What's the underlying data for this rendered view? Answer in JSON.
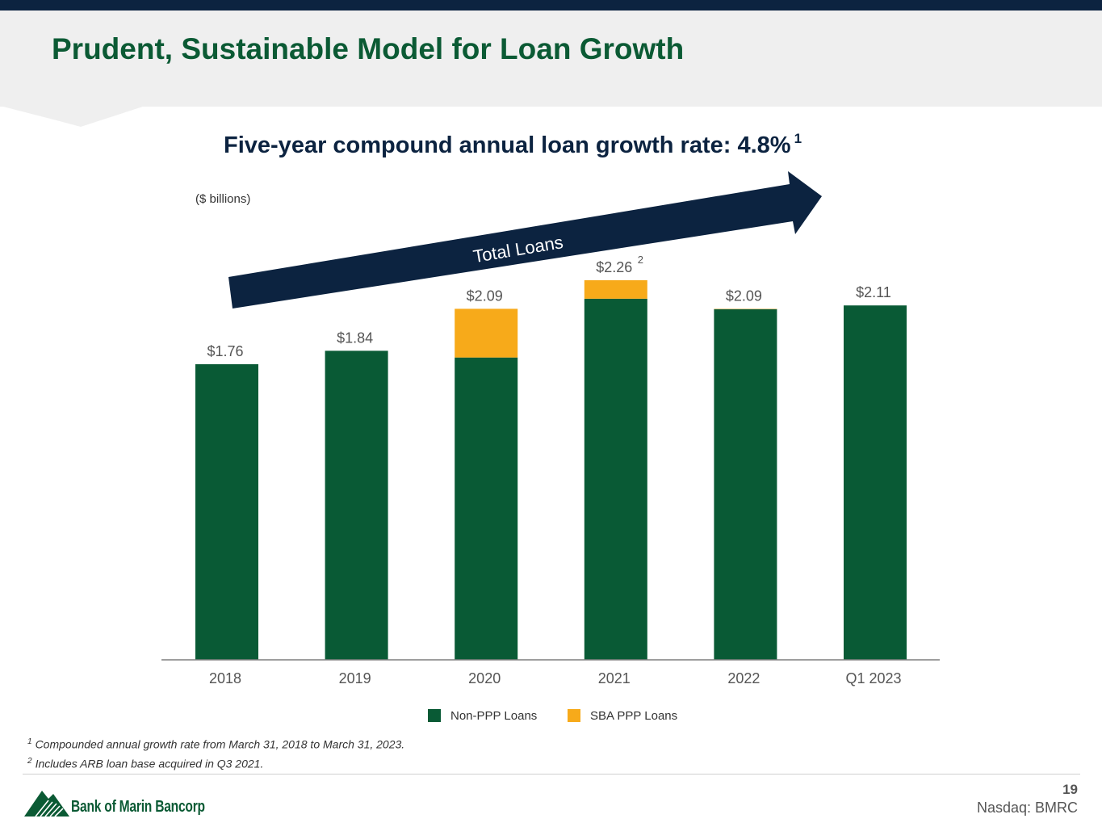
{
  "header": {
    "title": "Prudent, Sustainable Model for Loan Growth"
  },
  "chart_title": {
    "text": "Five-year compound annual loan growth rate: 4.8%",
    "footnote_marker": "1"
  },
  "units_label": "($ billions)",
  "arrow_label": "Total Loans",
  "chart_data": {
    "type": "bar",
    "stacked": true,
    "categories": [
      "2018",
      "2019",
      "2020",
      "2021",
      "2022",
      "Q1 2023"
    ],
    "series": [
      {
        "name": "Non-PPP Loans",
        "color": "#095a35",
        "values": [
          1.76,
          1.84,
          1.8,
          2.15,
          2.088,
          2.11
        ]
      },
      {
        "name": "SBA PPP Loans",
        "color": "#f7aa1a",
        "values": [
          0,
          0,
          0.29,
          0.11,
          0.002,
          0
        ]
      }
    ],
    "totals_labels": [
      "$1.76",
      "$1.84",
      "$2.09",
      "$2.26",
      "$2.09",
      "$2.11"
    ],
    "total_superscripts": [
      "",
      "",
      "",
      "2",
      "",
      ""
    ],
    "ylim": [
      0,
      2.26
    ],
    "grid": false,
    "legend_position": "bottom"
  },
  "footnotes": [
    {
      "marker": "1",
      "text": "Compounded annual growth rate from March 31, 2018 to March 31, 2023."
    },
    {
      "marker": "2",
      "text": "Includes ARB loan base acquired in Q3 2021."
    }
  ],
  "footer": {
    "brand": "Bank of Marin Bancorp",
    "page_number": "19",
    "ticker": "Nasdaq: BMRC"
  },
  "colors": {
    "navy": "#0c2340",
    "green": "#0b5a34",
    "gold": "#f7aa1a"
  }
}
